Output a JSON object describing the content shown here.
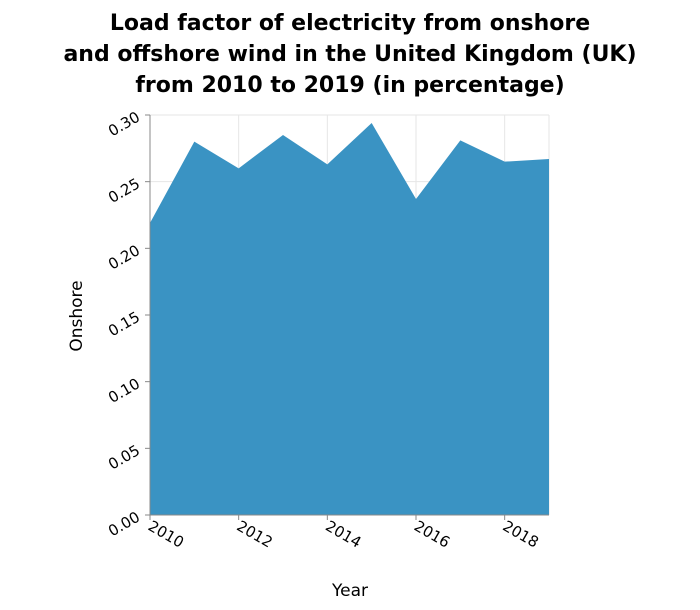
{
  "chart_data": {
    "type": "area",
    "title_lines": [
      "Load factor of electricity from onshore",
      "and offshore wind in the United Kingdom (UK)",
      "from 2010 to 2019 (in percentage)"
    ],
    "xlabel": "Year",
    "ylabel": "Onshore",
    "x": [
      2010,
      2011,
      2012,
      2013,
      2014,
      2015,
      2016,
      2017,
      2018,
      2019
    ],
    "series": [
      {
        "values": [
          0.219,
          0.28,
          0.26,
          0.285,
          0.263,
          0.294,
          0.237,
          0.281,
          0.265,
          0.267
        ],
        "color": "#3a93c3"
      }
    ],
    "xlim": [
      2010,
      2019
    ],
    "ylim": [
      0,
      0.3
    ],
    "xticks": [
      "2010",
      "2012",
      "2014",
      "2016",
      "2018"
    ],
    "yticks": [
      "0.00",
      "0.05",
      "0.10",
      "0.15",
      "0.20",
      "0.25",
      "0.30"
    ],
    "grid": true,
    "legend": "none"
  }
}
